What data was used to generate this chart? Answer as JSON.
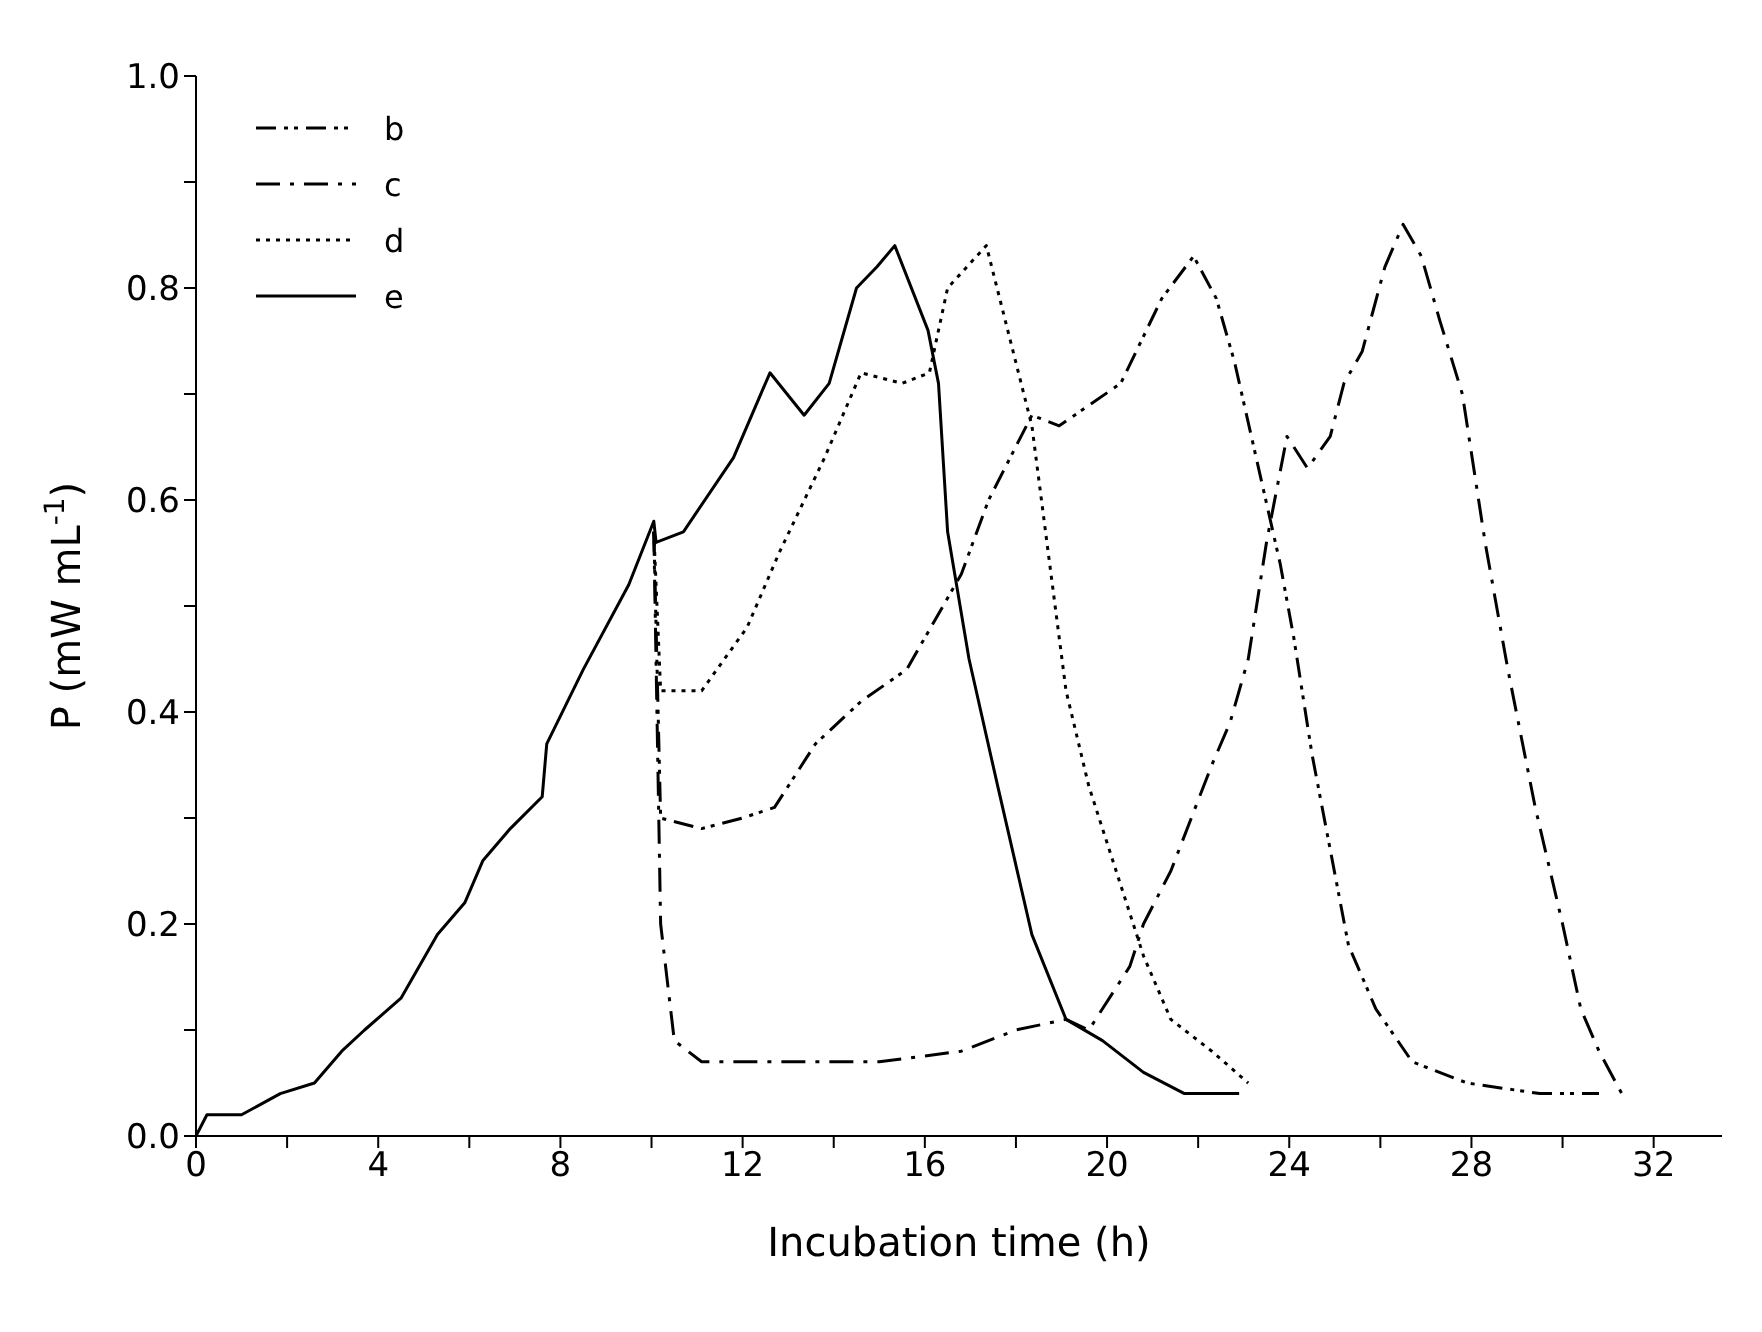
{
  "chart_data": {
    "type": "line",
    "xlabel": "Incubation time (h)",
    "ylabel": "P (mW mL$^{-1}$)",
    "xlim": [
      0,
      33.5
    ],
    "ylim": [
      0,
      1
    ],
    "xticks": [
      0,
      {
        "value": 2,
        "label": null
      },
      4,
      {
        "value": 6,
        "label": null
      },
      8,
      {
        "value": 10,
        "label": null
      },
      12,
      {
        "value": 14,
        "label": null
      },
      16,
      {
        "value": 18,
        "label": null
      },
      20,
      {
        "value": 22,
        "label": null
      },
      24,
      {
        "value": 26,
        "label": null
      },
      28,
      {
        "value": 30,
        "label": null
      },
      32
    ],
    "yticks": [
      {
        "value": 0,
        "label": "0.0"
      },
      {
        "value": 0.1,
        "label": null
      },
      0.2,
      {
        "value": 0.3,
        "label": null
      },
      0.4,
      {
        "value": 0.5,
        "label": null
      },
      0.6,
      {
        "value": 0.7,
        "label": null
      },
      0.8,
      {
        "value": 0.9,
        "label": null
      },
      {
        "value": 1,
        "label": "1.0"
      }
    ],
    "grid": false,
    "legend": "top left",
    "marker": "none",
    "series": [
      {
        "name": "b",
        "color": "#000000",
        "line_style": "dashdot",
        "x": [
          10.05,
          10.2,
          11.1,
          12,
          12.7,
          13.6,
          14.6,
          15.6,
          16.8,
          17.4,
          18.35,
          18.95,
          20.3,
          21.2,
          21.9,
          22.4,
          22.8,
          23.8,
          24.1,
          24.5,
          24.9,
          25.3,
          25.9,
          26.7,
          27.9,
          29.5,
          30.8
        ],
        "values": [
          0.57,
          0.3,
          0.29,
          0.3,
          0.31,
          0.37,
          0.41,
          0.44,
          0.53,
          0.6,
          0.68,
          0.67,
          0.71,
          0.79,
          0.83,
          0.79,
          0.73,
          0.54,
          0.47,
          0.36,
          0.27,
          0.18,
          0.12,
          0.07,
          0.05,
          0.04,
          0.04
        ]
      },
      {
        "name": "c",
        "color": "#000000",
        "line_style": "dashed",
        "x": [
          10.05,
          10.2,
          10.5,
          11.1,
          12,
          15,
          16.8,
          18,
          19.1,
          19.6,
          20.5,
          20.8,
          21.4,
          22.3,
          22.7,
          23.1,
          23.5,
          23.95,
          24.4,
          24.9,
          25.2,
          25.6,
          26.1,
          26.5,
          26.9,
          27.3,
          27.8,
          28.3,
          28.8,
          29.4,
          30,
          30.4,
          30.8,
          31.3
        ],
        "values": [
          0.57,
          0.2,
          0.09,
          0.07,
          0.07,
          0.07,
          0.08,
          0.1,
          0.11,
          0.1,
          0.16,
          0.2,
          0.25,
          0.35,
          0.39,
          0.45,
          0.56,
          0.66,
          0.63,
          0.66,
          0.71,
          0.74,
          0.82,
          0.86,
          0.83,
          0.77,
          0.7,
          0.56,
          0.44,
          0.31,
          0.2,
          0.12,
          0.08,
          0.04
        ]
      },
      {
        "name": "d",
        "color": "#000000",
        "line_style": "dotted",
        "x": [
          10.05,
          10.2,
          11.1,
          12.1,
          12.8,
          13.8,
          14.6,
          15.5,
          16.1,
          16.5,
          17.35,
          18.35,
          18.65,
          19.1,
          19.6,
          20.2,
          20.8,
          21.4,
          22.3,
          23.1
        ],
        "values": [
          0.57,
          0.42,
          0.42,
          0.48,
          0.55,
          0.64,
          0.72,
          0.71,
          0.72,
          0.8,
          0.84,
          0.67,
          0.57,
          0.42,
          0.33,
          0.25,
          0.17,
          0.11,
          0.08,
          0.05
        ]
      },
      {
        "name": "e",
        "color": "#000000",
        "line_style": "solid",
        "x": [
          0,
          0.24,
          1,
          1.85,
          2.6,
          3.2,
          3.7,
          4.5,
          5.3,
          5.9,
          6.3,
          6.9,
          7.6,
          7.7,
          8.5,
          9.5,
          10.05,
          10.1,
          10.7,
          11.8,
          12.6,
          13.35,
          13.9,
          14.5,
          14.95,
          15.34,
          16.07,
          16.3,
          16.5,
          16.97,
          17.6,
          18.35,
          19.1,
          19.9,
          20.8,
          21.7,
          22.9
        ],
        "values": [
          0,
          0.02,
          0.02,
          0.04,
          0.05,
          0.08,
          0.1,
          0.13,
          0.19,
          0.22,
          0.26,
          0.29,
          0.32,
          0.37,
          0.44,
          0.52,
          0.58,
          0.56,
          0.57,
          0.64,
          0.72,
          0.68,
          0.71,
          0.8,
          0.82,
          0.84,
          0.76,
          0.71,
          0.57,
          0.45,
          0.33,
          0.19,
          0.11,
          0.09,
          0.06,
          0.04,
          0.04
        ]
      }
    ]
  }
}
